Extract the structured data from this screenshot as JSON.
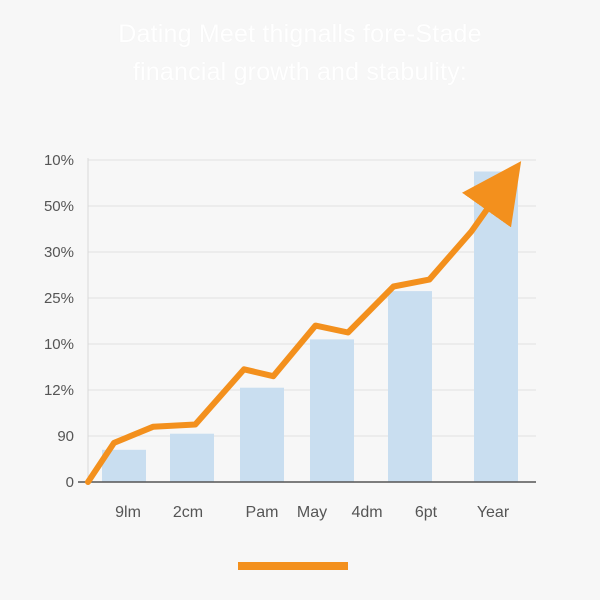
{
  "chart_data": {
    "type": "bar",
    "title": "Dating Meet thignalls fore-Stade",
    "subtitle": "financial growth and stabulity:",
    "xlabel": "",
    "ylabel": "",
    "grid": true,
    "y_tick_labels": [
      "0",
      "90",
      "12%",
      "10%",
      "25%",
      "30%",
      "50%",
      "10%"
    ],
    "categories": [
      "9lm",
      "2cm",
      "Pam",
      "May",
      "4dm",
      "6pt",
      "Year"
    ],
    "bar_values": [
      0.7,
      1.05,
      2.05,
      3.1,
      4.15,
      6.75
    ],
    "line_points": [
      [
        0.0,
        0.0
      ],
      [
        0.4,
        0.85
      ],
      [
        1.0,
        1.2
      ],
      [
        1.65,
        1.25
      ],
      [
        2.4,
        2.45
      ],
      [
        2.85,
        2.3
      ],
      [
        3.5,
        3.4
      ],
      [
        4.0,
        3.25
      ],
      [
        4.7,
        4.25
      ],
      [
        5.25,
        4.4
      ],
      [
        5.9,
        5.45
      ],
      [
        6.45,
        6.55
      ]
    ],
    "colors": {
      "bar": "#c9def0",
      "line": "#f3901d",
      "grid": "#e2e2e2",
      "axis": "#555555",
      "legend_swatch": "#f3901d"
    }
  }
}
